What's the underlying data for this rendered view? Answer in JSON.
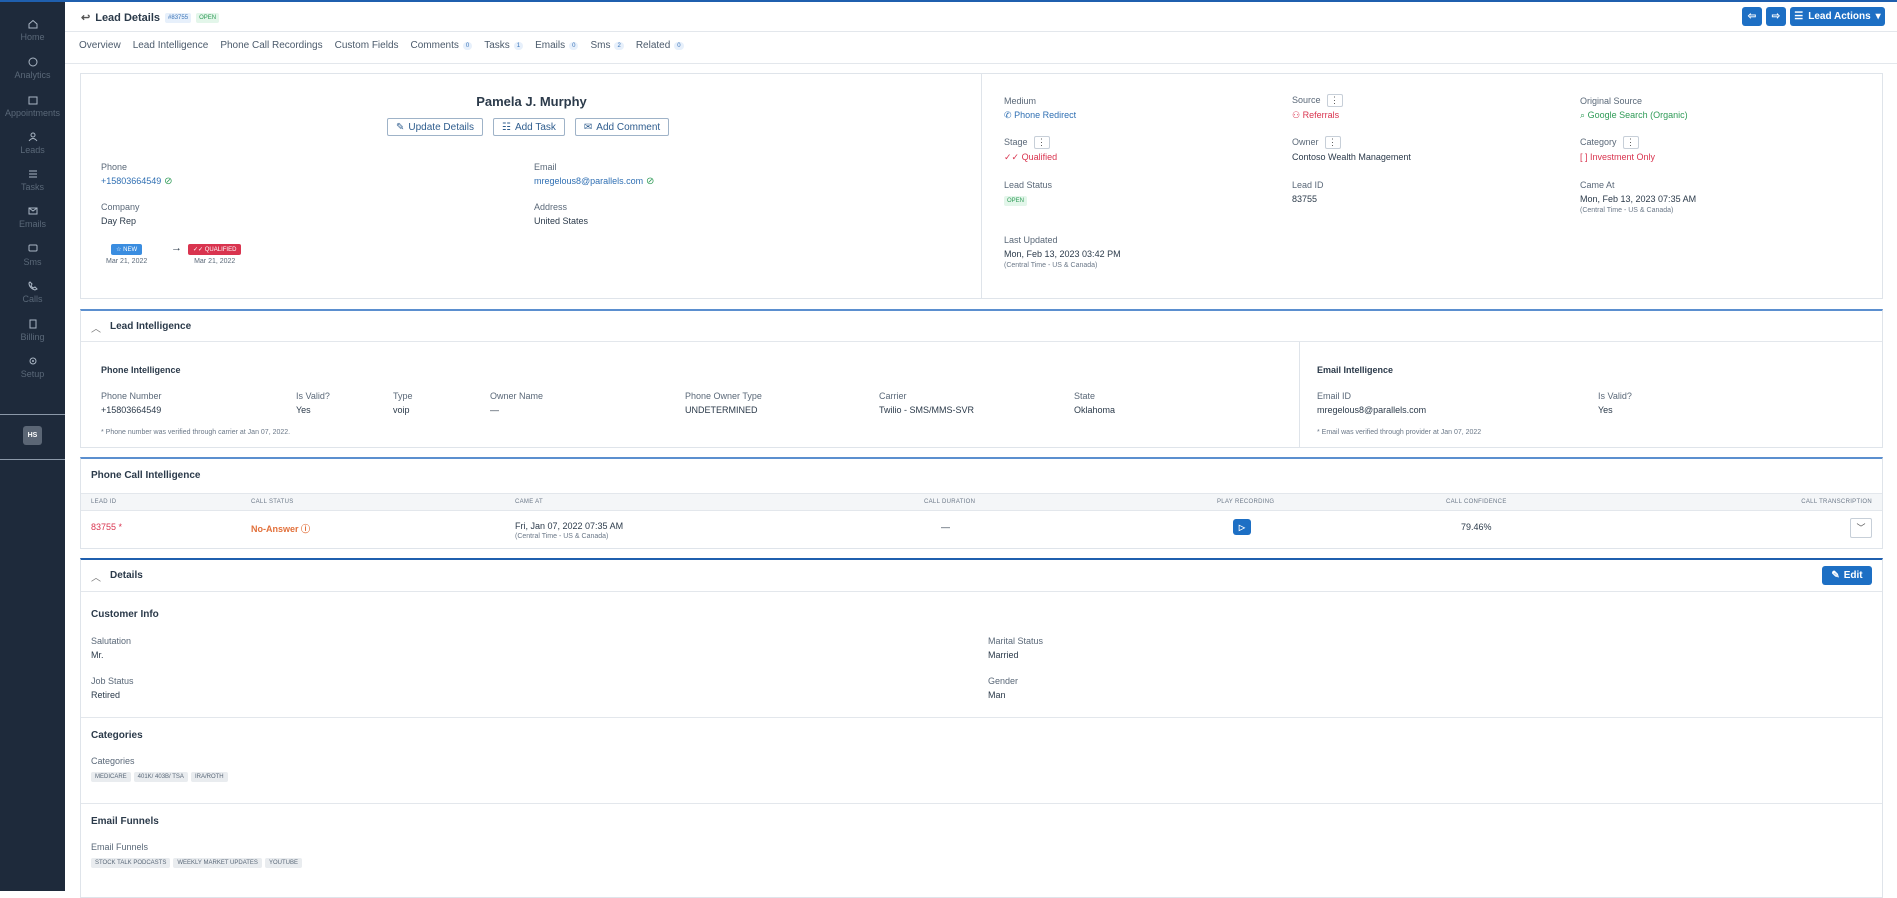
{
  "sidebar": {
    "items": [
      {
        "label": "Home",
        "icon": "home-icon"
      },
      {
        "label": "Analytics",
        "icon": "analytics-icon"
      },
      {
        "label": "Appointments",
        "icon": "calendar-icon"
      },
      {
        "label": "Leads",
        "icon": "users-icon"
      },
      {
        "label": "Tasks",
        "icon": "list-icon"
      },
      {
        "label": "Emails",
        "icon": "mail-icon"
      },
      {
        "label": "Sms",
        "icon": "chat-icon"
      },
      {
        "label": "Calls",
        "icon": "phone-icon"
      },
      {
        "label": "Billing",
        "icon": "billing-icon"
      },
      {
        "label": "Setup",
        "icon": "gear-icon"
      }
    ],
    "avatar": "HS"
  },
  "header": {
    "title": "Lead Details",
    "lead_badge": "#83755",
    "status_badge": "OPEN",
    "actions_label": "Lead Actions"
  },
  "tabs": [
    {
      "label": "Overview"
    },
    {
      "label": "Lead Intelligence"
    },
    {
      "label": "Phone Call Recordings"
    },
    {
      "label": "Custom Fields"
    },
    {
      "label": "Comments",
      "count": "0"
    },
    {
      "label": "Tasks",
      "count": "1"
    },
    {
      "label": "Emails",
      "count": "0"
    },
    {
      "label": "Sms",
      "count": "2"
    },
    {
      "label": "Related",
      "count": "0"
    }
  ],
  "profile": {
    "name": "Pamela J. Murphy",
    "update_btn": "Update Details",
    "task_btn": "Add Task",
    "comment_btn": "Add Comment",
    "phone_label": "Phone",
    "phone": "+15803664549",
    "email_label": "Email",
    "email": "mregelous8@parallels.com",
    "company_label": "Company",
    "company": "Day Rep",
    "address_label": "Address",
    "address": "United States",
    "stage_from": "NEW",
    "stage_from_date": "Mar 21, 2022",
    "stage_to": "QUALIFIED",
    "stage_to_date": "Mar 21, 2022"
  },
  "meta": {
    "medium_label": "Medium",
    "medium": "Phone Redirect",
    "source_label": "Source",
    "source": "Referrals",
    "orig_label": "Original Source",
    "orig": "Google Search (Organic)",
    "stage_label": "Stage",
    "stage": "Qualified",
    "owner_label": "Owner",
    "owner": "Contoso Wealth Management",
    "category_label": "Category",
    "category": "Investment Only",
    "lead_status_label": "Lead Status",
    "lead_status": "OPEN",
    "lead_id_label": "Lead ID",
    "lead_id": "83755",
    "came_label": "Came At",
    "came": "Mon, Feb 13, 2023 07:35 AM",
    "came_tz": "(Central Time - US & Canada)",
    "updated_label": "Last Updated",
    "updated": "Mon, Feb 13, 2023 03:42 PM",
    "updated_tz": "(Central Time - US & Canada)"
  },
  "intel": {
    "title": "Lead Intelligence",
    "phone_title": "Phone Intelligence",
    "cols": [
      {
        "label": "Phone Number",
        "value": "+15803664549"
      },
      {
        "label": "Is Valid?",
        "value": "Yes"
      },
      {
        "label": "Type",
        "value": "voip"
      },
      {
        "label": "Owner Name",
        "value": "—"
      },
      {
        "label": "Phone Owner Type",
        "value": "UNDETERMINED"
      },
      {
        "label": "Carrier",
        "value": "Twilio - SMS/MMS-SVR"
      },
      {
        "label": "State",
        "value": "Oklahoma"
      }
    ],
    "phone_note": "* Phone number was verified through carrier at Jan 07, 2022.",
    "email_title": "Email Intelligence",
    "email_id_label": "Email ID",
    "email_id": "mregelous8@parallels.com",
    "email_valid_label": "Is Valid?",
    "email_valid": "Yes",
    "email_note": "* Email was verified through provider at Jan 07, 2022"
  },
  "calls": {
    "title": "Phone Call Intelligence",
    "headers": [
      "LEAD ID",
      "CALL STATUS",
      "CAME AT",
      "CALL DURATION",
      "PLAY RECORDING",
      "CALL CONFIDENCE",
      "CALL TRANSCRIPTION"
    ],
    "row": {
      "lead_id": "83755 *",
      "status": "No-Answer",
      "came": "Fri, Jan 07, 2022 07:35 AM",
      "came_tz": "(Central Time - US & Canada)",
      "duration": "—",
      "confidence": "79.46%"
    }
  },
  "details": {
    "title": "Details",
    "edit": "Edit",
    "customer_title": "Customer Info",
    "salutation_label": "Salutation",
    "salutation": "Mr.",
    "marital_label": "Marital Status",
    "marital": "Married",
    "job_label": "Job Status",
    "job": "Retired",
    "gender_label": "Gender",
    "gender": "Man",
    "cat_title": "Categories",
    "cat_label": "Categories",
    "cats": [
      "MEDICARE",
      "401K/ 403B/ TSA",
      "IRA/ROTH"
    ],
    "funnel_title": "Email Funnels",
    "funnel_label": "Email Funnels",
    "funnels": [
      "STOCK TALK PODCASTS",
      "WEEKLY MARKET UPDATES",
      "YOUTUBE"
    ]
  },
  "colors": {
    "sidebar": "#1e2a3b",
    "accent": "#1d6fc4",
    "red": "#d9344f",
    "green": "#2f9b57"
  }
}
